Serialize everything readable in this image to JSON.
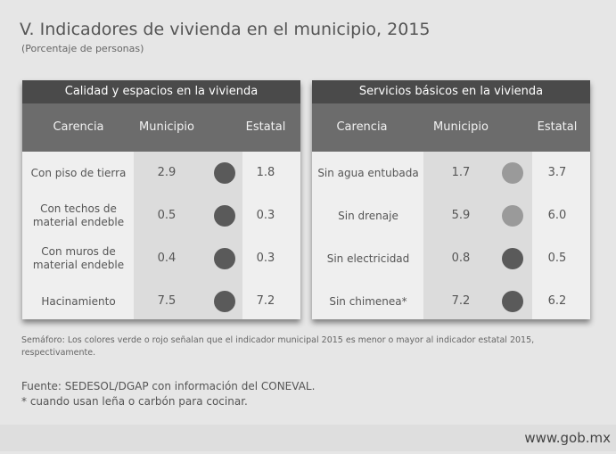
{
  "title": "V. Indicadores de vivienda en el municipio, 2015",
  "subtitle": "(Porcentaje de personas)",
  "tables": [
    {
      "title": "Calidad y espacios en la vivienda",
      "columns": [
        "Carencia",
        "Municipio",
        "Estatal"
      ],
      "rows": [
        {
          "carencia": "Con piso de tierra",
          "municipio": "2.9",
          "estatal": "1.8",
          "color": "#5a5a5a"
        },
        {
          "carencia": "Con techos de material endeble",
          "municipio": "0.5",
          "estatal": "0.3",
          "color": "#5a5a5a"
        },
        {
          "carencia": "Con muros de material endeble",
          "municipio": "0.4",
          "estatal": "0.3",
          "color": "#5a5a5a"
        },
        {
          "carencia": "Hacinamiento",
          "municipio": "7.5",
          "estatal": "7.2",
          "color": "#5a5a5a"
        }
      ]
    },
    {
      "title": "Servicios básicos en la vivienda",
      "columns": [
        "Carencia",
        "Municipio",
        "Estatal"
      ],
      "rows": [
        {
          "carencia": "Sin agua entubada",
          "municipio": "1.7",
          "estatal": "3.7",
          "color": "#9a9a9a"
        },
        {
          "carencia": "Sin drenaje",
          "municipio": "5.9",
          "estatal": "6.0",
          "color": "#9a9a9a"
        },
        {
          "carencia": "Sin electricidad",
          "municipio": "0.8",
          "estatal": "0.5",
          "color": "#5a5a5a"
        },
        {
          "carencia": "Sin chimenea*",
          "municipio": "7.2",
          "estatal": "6.2",
          "color": "#5a5a5a"
        }
      ]
    }
  ],
  "semaforo_note": "Semáforo: Los colores verde o rojo señalan que el indicador municipal 2015 es menor o mayor al indicador estatal 2015, respectivamente.",
  "source": "Fuente: SEDESOL/DGAP con información del CONEVAL.",
  "footnote": "* cuando usan leña o carbón para cocinar.",
  "url": "www.gob.mx"
}
